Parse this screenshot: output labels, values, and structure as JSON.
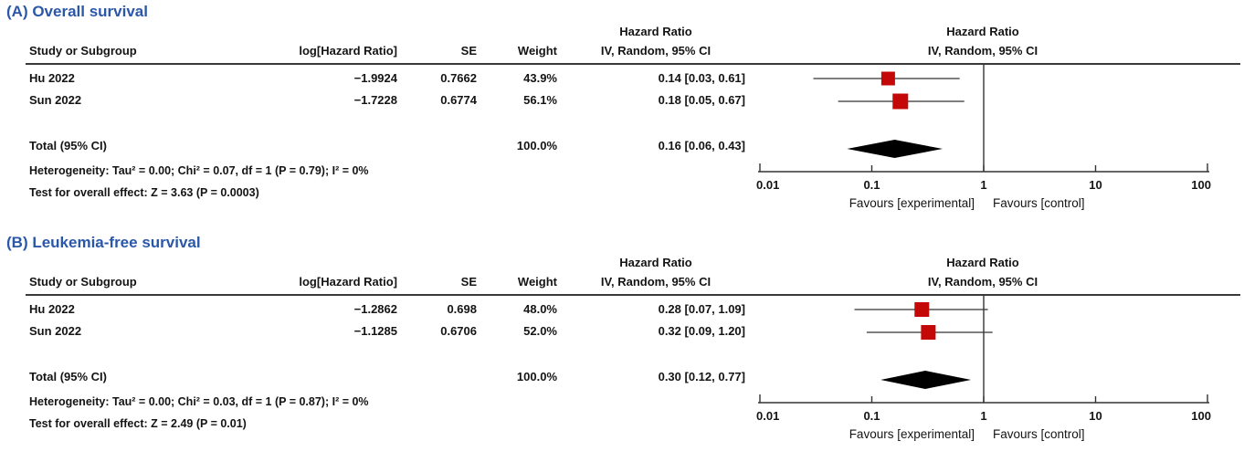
{
  "colors": {
    "title_blue": "#2b57a8",
    "marker_red": "#c40808",
    "line_dark": "#333333",
    "text": "#141414"
  },
  "chart_data": [
    {
      "type": "forest",
      "title": "(A) Overall survival",
      "columns": {
        "study": "Study or Subgroup",
        "loghr": "log[Hazard Ratio]",
        "se": "SE",
        "weight": "Weight",
        "ci_top": "Hazard Ratio",
        "ci": "IV, Random, 95% CI"
      },
      "plot_header": {
        "line1": "Hazard Ratio",
        "line2": "IV, Random, 95% CI"
      },
      "rows": [
        {
          "study": "Hu 2022",
          "loghr": "−1.9924",
          "se": "0.7662",
          "weight": "43.9%",
          "ci_text": "0.14 [0.03, 0.61]",
          "hr": 0.14,
          "low": 0.03,
          "high": 0.61
        },
        {
          "study": "Sun 2022",
          "loghr": "−1.7228",
          "se": "0.6774",
          "weight": "56.1%",
          "ci_text": "0.18 [0.05, 0.67]",
          "hr": 0.18,
          "low": 0.05,
          "high": 0.67
        }
      ],
      "total": {
        "label": "Total (95% CI)",
        "weight": "100.0%",
        "ci_text": "0.16 [0.06, 0.43]",
        "hr": 0.16,
        "low": 0.06,
        "high": 0.43
      },
      "heterogeneity": "Heterogeneity: Tau² = 0.00; Chi² = 0.07, df = 1 (P = 0.79); I² = 0%",
      "overall_effect": "Test for overall effect: Z = 3.63 (P = 0.0003)",
      "axis": {
        "scale": "log",
        "min": 0.01,
        "max": 100,
        "ticks": [
          0.01,
          0.1,
          1,
          10,
          100
        ],
        "tick_labels": [
          "0.01",
          "0.1",
          "1",
          "10",
          "100"
        ],
        "favours_left": "Favours [experimental]",
        "favours_right": "Favours [control]"
      }
    },
    {
      "type": "forest",
      "title": "(B) Leukemia-free survival",
      "columns": {
        "study": "Study or Subgroup",
        "loghr": "log[Hazard Ratio]",
        "se": "SE",
        "weight": "Weight",
        "ci_top": "Hazard Ratio",
        "ci": "IV, Random, 95% CI"
      },
      "plot_header": {
        "line1": "Hazard Ratio",
        "line2": "IV, Random, 95% CI"
      },
      "rows": [
        {
          "study": "Hu 2022",
          "loghr": "−1.2862",
          "se": "0.698",
          "weight": "48.0%",
          "ci_text": "0.28 [0.07, 1.09]",
          "hr": 0.28,
          "low": 0.07,
          "high": 1.09
        },
        {
          "study": "Sun 2022",
          "loghr": "−1.1285",
          "se": "0.6706",
          "weight": "52.0%",
          "ci_text": "0.32 [0.09, 1.20]",
          "hr": 0.32,
          "low": 0.09,
          "high": 1.2
        }
      ],
      "total": {
        "label": "Total (95% CI)",
        "weight": "100.0%",
        "ci_text": "0.30 [0.12, 0.77]",
        "hr": 0.3,
        "low": 0.12,
        "high": 0.77
      },
      "heterogeneity": "Heterogeneity: Tau² = 0.00; Chi² = 0.03, df = 1 (P = 0.87); I² = 0%",
      "overall_effect": "Test for overall effect: Z = 2.49 (P = 0.01)",
      "axis": {
        "scale": "log",
        "min": 0.01,
        "max": 100,
        "ticks": [
          0.01,
          0.1,
          1,
          10,
          100
        ],
        "tick_labels": [
          "0.01",
          "0.1",
          "1",
          "10",
          "100"
        ],
        "favours_left": "Favours [experimental]",
        "favours_right": "Favours [control]"
      }
    }
  ]
}
